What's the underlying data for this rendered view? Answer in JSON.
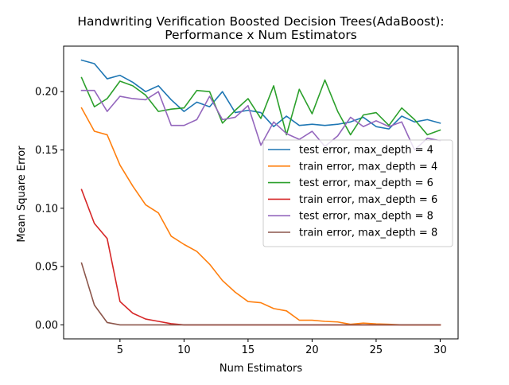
{
  "chart_data": {
    "type": "line",
    "title": "Handwriting Verification Boosted Decision Trees(AdaBoost):",
    "subtitle": "Performance x Num Estimators",
    "xlabel": "Num Estimators",
    "ylabel": "Mean Square Error",
    "xlim": [
      0.6,
      31.4
    ],
    "ylim": [
      -0.012,
      0.239
    ],
    "xticks": [
      5,
      10,
      15,
      20,
      25,
      30
    ],
    "xtick_labels": [
      "5",
      "10",
      "15",
      "20",
      "25",
      "30"
    ],
    "yticks": [
      0.0,
      0.05,
      0.1,
      0.15,
      0.2
    ],
    "ytick_labels": [
      "0.00",
      "0.05",
      "0.10",
      "0.15",
      "0.20"
    ],
    "grid": false,
    "legend_position": "center-right",
    "x": [
      2,
      3,
      4,
      5,
      6,
      7,
      8,
      9,
      10,
      11,
      12,
      13,
      14,
      15,
      16,
      17,
      18,
      19,
      20,
      21,
      22,
      23,
      24,
      25,
      26,
      27,
      28,
      29,
      30
    ],
    "series": [
      {
        "name": "test error, max_depth = 4",
        "color": "#1f77b4",
        "values": [
          0.227,
          0.224,
          0.211,
          0.214,
          0.208,
          0.2,
          0.205,
          0.193,
          0.183,
          0.191,
          0.187,
          0.2,
          0.182,
          0.184,
          0.182,
          0.17,
          0.179,
          0.171,
          0.172,
          0.171,
          0.172,
          0.174,
          0.178,
          0.17,
          0.168,
          0.179,
          0.174,
          0.176,
          0.173
        ]
      },
      {
        "name": "train error, max_depth = 4",
        "color": "#ff7f0e",
        "values": [
          0.186,
          0.166,
          0.163,
          0.137,
          0.119,
          0.103,
          0.096,
          0.076,
          0.069,
          0.063,
          0.052,
          0.038,
          0.028,
          0.02,
          0.019,
          0.014,
          0.012,
          0.004,
          0.004,
          0.003,
          0.0025,
          0.0005,
          0.0015,
          0.0008,
          0.0005,
          0.0,
          0.0,
          0.0,
          0.0
        ]
      },
      {
        "name": "test error, max_depth = 6",
        "color": "#2ca02c",
        "values": [
          0.212,
          0.187,
          0.194,
          0.209,
          0.205,
          0.197,
          0.183,
          0.185,
          0.186,
          0.201,
          0.2,
          0.173,
          0.184,
          0.194,
          0.177,
          0.205,
          0.163,
          0.202,
          0.181,
          0.21,
          0.183,
          0.163,
          0.18,
          0.182,
          0.171,
          0.186,
          0.176,
          0.163,
          0.167
        ]
      },
      {
        "name": "train error, max_depth = 6",
        "color": "#d62728",
        "values": [
          0.116,
          0.087,
          0.074,
          0.02,
          0.01,
          0.005,
          0.003,
          0.001,
          0.0,
          0.0,
          0.0,
          0.0,
          0.0,
          0.0,
          0.0,
          0.0,
          0.0,
          0.0,
          0.0,
          0.0,
          0.0,
          0.0,
          0.0,
          0.0,
          0.0,
          0.0,
          0.0,
          0.0,
          0.0
        ]
      },
      {
        "name": "test error, max_depth = 8",
        "color": "#9467bd",
        "values": [
          0.201,
          0.201,
          0.183,
          0.196,
          0.194,
          0.193,
          0.2,
          0.171,
          0.171,
          0.176,
          0.196,
          0.176,
          0.178,
          0.188,
          0.154,
          0.174,
          0.164,
          0.159,
          0.166,
          0.153,
          0.162,
          0.178,
          0.17,
          0.175,
          0.17,
          0.174,
          0.15,
          0.16,
          0.158
        ]
      },
      {
        "name": "train error, max_depth = 8",
        "color": "#8c564b",
        "values": [
          0.053,
          0.017,
          0.002,
          0.0,
          0.0,
          0.0,
          0.0,
          0.0,
          0.0,
          0.0,
          0.0,
          0.0,
          0.0,
          0.0,
          0.0,
          0.0,
          0.0,
          0.0,
          0.0,
          0.0,
          0.0,
          0.0,
          0.0,
          0.0,
          0.0,
          0.0,
          0.0,
          0.0,
          0.0
        ]
      }
    ]
  }
}
